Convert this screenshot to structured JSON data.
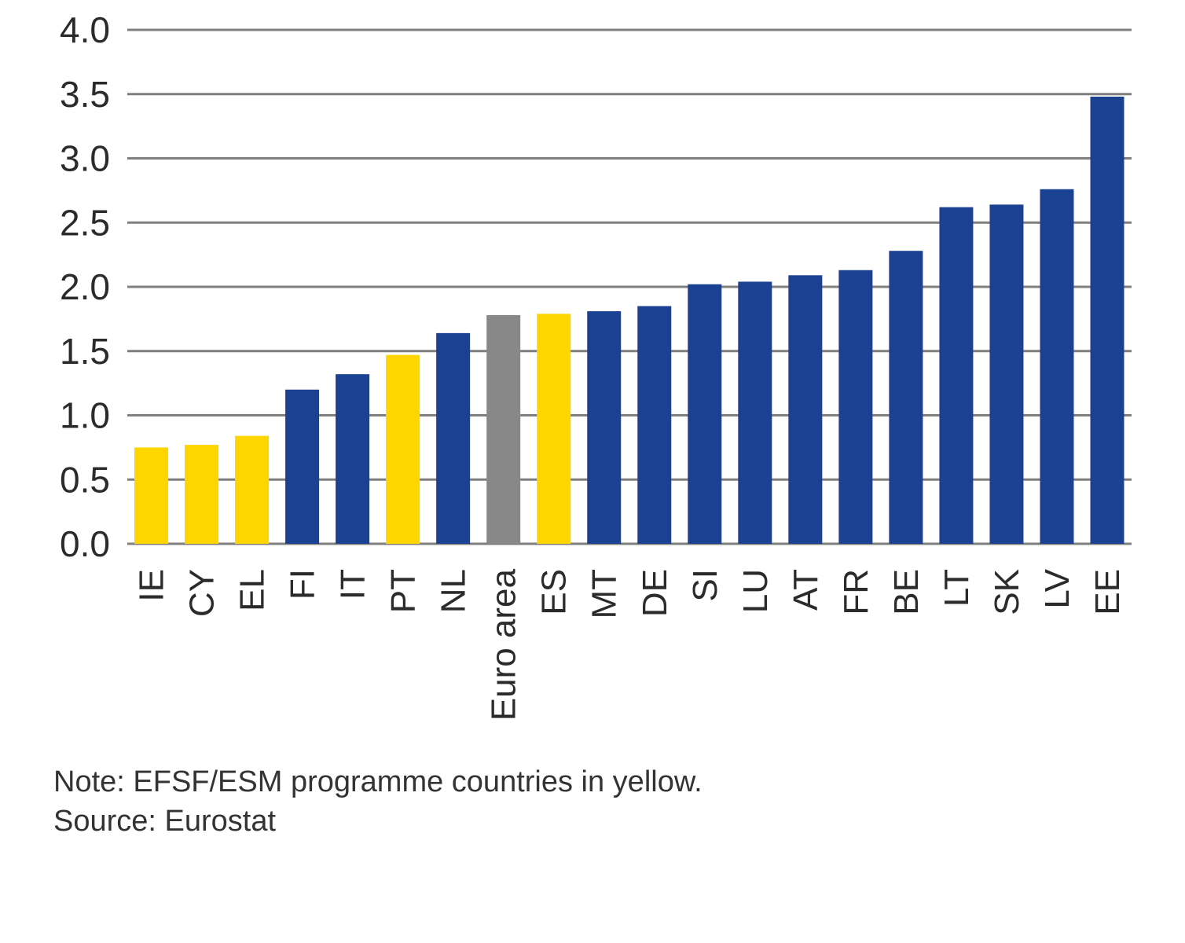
{
  "chart_data": {
    "type": "bar",
    "categories": [
      "IE",
      "CY",
      "EL",
      "FI",
      "IT",
      "PT",
      "NL",
      "Euro area",
      "ES",
      "MT",
      "DE",
      "SI",
      "LU",
      "AT",
      "FR",
      "BE",
      "LT",
      "SK",
      "LV",
      "EE"
    ],
    "values": [
      0.75,
      0.77,
      0.84,
      1.2,
      1.32,
      1.47,
      1.64,
      1.78,
      1.79,
      1.81,
      1.85,
      2.02,
      2.04,
      2.09,
      2.13,
      2.28,
      2.62,
      2.64,
      2.76,
      3.48
    ],
    "bar_colors": [
      "#ffd500",
      "#ffd500",
      "#ffd500",
      "#1b4192",
      "#1b4192",
      "#ffd500",
      "#1b4192",
      "#888888",
      "#ffd500",
      "#1b4192",
      "#1b4192",
      "#1b4192",
      "#1b4192",
      "#1b4192",
      "#1b4192",
      "#1b4192",
      "#1b4192",
      "#1b4192",
      "#1b4192",
      "#1b4192"
    ],
    "y_ticks": [
      "0.0",
      "0.5",
      "1.0",
      "1.5",
      "2.0",
      "2.5",
      "3.0",
      "3.5",
      "4.0"
    ],
    "ylim": [
      0,
      4
    ],
    "grid": true,
    "gridline_color": "#7f7f7f"
  },
  "note": "Note: EFSF/ESM programme countries in yellow.",
  "source": "Source: Eurostat"
}
